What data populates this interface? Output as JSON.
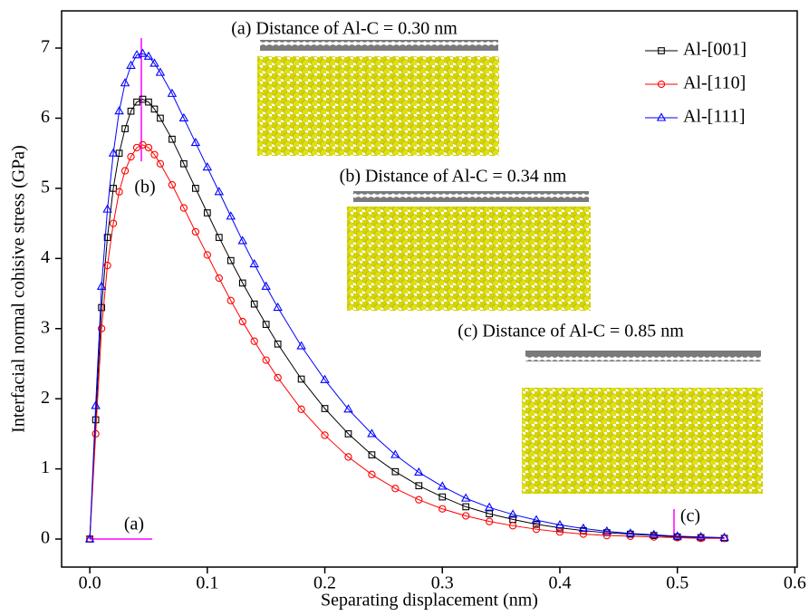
{
  "chart_data": {
    "type": "line",
    "x_label": "Separating displacement (nm)",
    "y_label": "Interfacial normal cohisive stress (GPa)",
    "x": [
      0,
      0.005,
      0.01,
      0.015,
      0.02,
      0.025,
      0.03,
      0.035,
      0.04,
      0.045,
      0.05,
      0.055,
      0.06,
      0.07,
      0.08,
      0.09,
      0.1,
      0.11,
      0.12,
      0.13,
      0.14,
      0.15,
      0.16,
      0.18,
      0.2,
      0.22,
      0.24,
      0.26,
      0.28,
      0.3,
      0.32,
      0.34,
      0.36,
      0.38,
      0.4,
      0.42,
      0.44,
      0.46,
      0.48,
      0.5,
      0.52,
      0.54
    ],
    "series": [
      {
        "name": "Al-[001]",
        "color": "#000000",
        "marker": "square",
        "values": [
          0,
          1.7,
          3.3,
          4.3,
          5.0,
          5.5,
          5.85,
          6.1,
          6.23,
          6.27,
          6.23,
          6.13,
          6.0,
          5.7,
          5.35,
          5.0,
          4.65,
          4.3,
          3.97,
          3.65,
          3.35,
          3.06,
          2.78,
          2.28,
          1.86,
          1.5,
          1.2,
          0.96,
          0.76,
          0.6,
          0.46,
          0.36,
          0.28,
          0.21,
          0.16,
          0.12,
          0.09,
          0.07,
          0.05,
          0.03,
          0.02,
          0.01
        ]
      },
      {
        "name": "Al-[110]",
        "color": "#ff0000",
        "marker": "circle",
        "values": [
          0,
          1.5,
          3.0,
          3.9,
          4.5,
          4.95,
          5.25,
          5.45,
          5.58,
          5.62,
          5.58,
          5.48,
          5.35,
          5.05,
          4.72,
          4.38,
          4.05,
          3.72,
          3.4,
          3.1,
          2.82,
          2.55,
          2.3,
          1.85,
          1.48,
          1.17,
          0.92,
          0.72,
          0.56,
          0.43,
          0.33,
          0.25,
          0.19,
          0.14,
          0.1,
          0.07,
          0.05,
          0.04,
          0.03,
          0.02,
          0.01,
          0.01
        ]
      },
      {
        "name": "Al-[111]",
        "color": "#0000ff",
        "marker": "triangle",
        "values": [
          0,
          1.9,
          3.6,
          4.7,
          5.5,
          6.1,
          6.5,
          6.75,
          6.9,
          6.92,
          6.88,
          6.78,
          6.65,
          6.35,
          6.0,
          5.65,
          5.3,
          4.95,
          4.6,
          4.25,
          3.92,
          3.6,
          3.3,
          2.75,
          2.27,
          1.85,
          1.5,
          1.2,
          0.95,
          0.75,
          0.58,
          0.45,
          0.35,
          0.27,
          0.2,
          0.15,
          0.11,
          0.08,
          0.06,
          0.04,
          0.03,
          0.02
        ]
      }
    ],
    "xlim": [
      -0.024,
      0.602
    ],
    "ylim": [
      -0.4,
      7.53
    ],
    "xticks": [
      {
        "value": 0,
        "label": "0.0"
      },
      0.1,
      0.2,
      0.3,
      0.4,
      0.5,
      0.6
    ],
    "yticks": [
      0,
      1,
      2,
      3,
      4,
      5,
      6,
      7
    ],
    "legend": "upper right",
    "annotations": [
      "(a) Distance of Al-C = 0.30 nm",
      "(b) Distance of Al-C = 0.34 nm",
      "(c) Distance of Al-C = 0.85 nm",
      "(a)",
      "(b)",
      "(c)"
    ]
  }
}
